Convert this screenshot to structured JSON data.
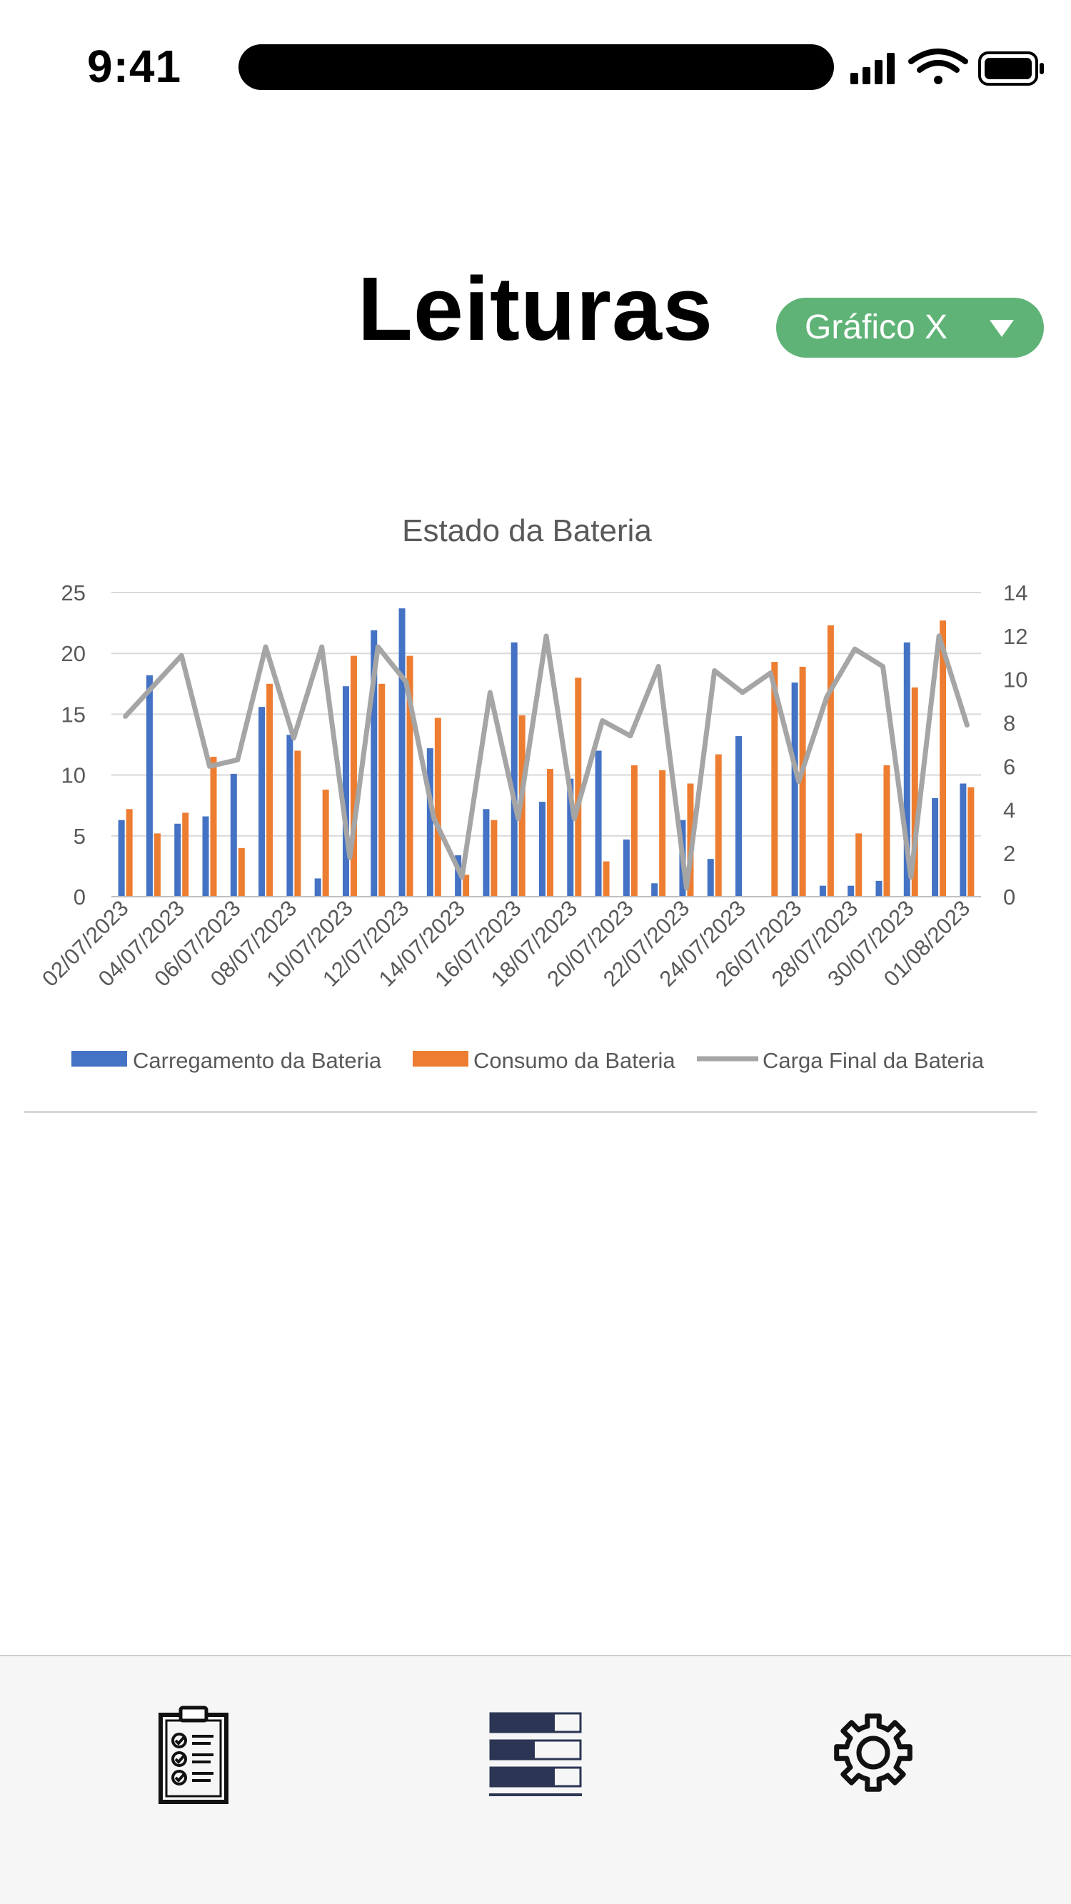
{
  "status_bar": {
    "time": "9:41"
  },
  "header": {
    "title": "Leituras",
    "chart_selector": "Gráfico X"
  },
  "icons": {
    "signal": "cellular-signal-icon",
    "wifi": "wifi-icon",
    "battery": "battery-icon",
    "dropdown": "chevron-down-icon",
    "nav_readings": "clipboard-checklist-icon",
    "nav_data": "bar-list-icon",
    "nav_settings": "gear-icon"
  },
  "colors": {
    "accent": "#5fb377",
    "series_charging": "#4472c4",
    "series_consumption": "#ed7d31",
    "series_final_charge": "#a5a5a5"
  },
  "chart_data": {
    "type": "bar",
    "title": "Estado da Bateria",
    "x": [
      "02/07/2023",
      "03/07/2023",
      "04/07/2023",
      "05/07/2023",
      "06/07/2023",
      "07/07/2023",
      "08/07/2023",
      "09/07/2023",
      "10/07/2023",
      "11/07/2023",
      "12/07/2023",
      "13/07/2023",
      "14/07/2023",
      "15/07/2023",
      "16/07/2023",
      "17/07/2023",
      "18/07/2023",
      "19/07/2023",
      "20/07/2023",
      "21/07/2023",
      "22/07/2023",
      "23/07/2023",
      "24/07/2023",
      "25/07/2023",
      "26/07/2023",
      "27/07/2023",
      "28/07/2023",
      "29/07/2023",
      "30/07/2023",
      "31/07/2023",
      "01/08/2023"
    ],
    "x_tick_labels": [
      "02/07/2023",
      "04/07/2023",
      "06/07/2023",
      "08/07/2023",
      "10/07/2023",
      "12/07/2023",
      "14/07/2023",
      "16/07/2023",
      "18/07/2023",
      "20/07/2023",
      "22/07/2023",
      "24/07/2023",
      "26/07/2023",
      "28/07/2023",
      "30/07/2023",
      "01/08/2023"
    ],
    "series": [
      {
        "name": "Carregamento da Bateria",
        "type": "bar",
        "axis": "left",
        "values": [
          6.3,
          18.2,
          6.0,
          6.6,
          10.1,
          15.6,
          13.3,
          1.5,
          17.3,
          21.9,
          23.7,
          12.2,
          3.4,
          7.2,
          20.9,
          7.8,
          9.7,
          12.0,
          4.7,
          1.1,
          6.3,
          3.1,
          13.2,
          0,
          17.6,
          0.9,
          0.9,
          1.3,
          20.9,
          8.1,
          9.3
        ]
      },
      {
        "name": "Consumo da Bateria",
        "type": "bar",
        "axis": "left",
        "values": [
          7.2,
          5.2,
          6.9,
          11.5,
          4.0,
          17.5,
          12.0,
          8.8,
          19.8,
          17.5,
          19.8,
          14.7,
          1.8,
          6.3,
          14.9,
          10.5,
          18.0,
          2.9,
          10.8,
          10.4,
          9.3,
          11.7,
          0,
          19.3,
          18.9,
          22.3,
          5.2,
          10.8,
          17.2,
          22.7,
          9.0
        ]
      },
      {
        "name": "Carga Final da Bateria",
        "type": "line",
        "axis": "right",
        "values": [
          8.3,
          9.7,
          11.1,
          6.0,
          6.3,
          11.5,
          7.3,
          11.5,
          1.8,
          11.5,
          9.9,
          3.6,
          0.9,
          9.4,
          3.6,
          12.0,
          3.6,
          8.1,
          7.4,
          10.6,
          0.4,
          10.4,
          9.4,
          10.3,
          5.3,
          9.2,
          11.4,
          10.6,
          0.9,
          12.0,
          7.9
        ]
      }
    ],
    "ylim_left": [
      0,
      25
    ],
    "yticks_left": [
      "0",
      "5",
      "10",
      "15",
      "20",
      "25"
    ],
    "ylim_right": [
      0,
      14
    ],
    "yticks_right": [
      "0",
      "2",
      "4",
      "6",
      "8",
      "10",
      "12",
      "14"
    ],
    "grid": true,
    "legend": "bottom"
  }
}
